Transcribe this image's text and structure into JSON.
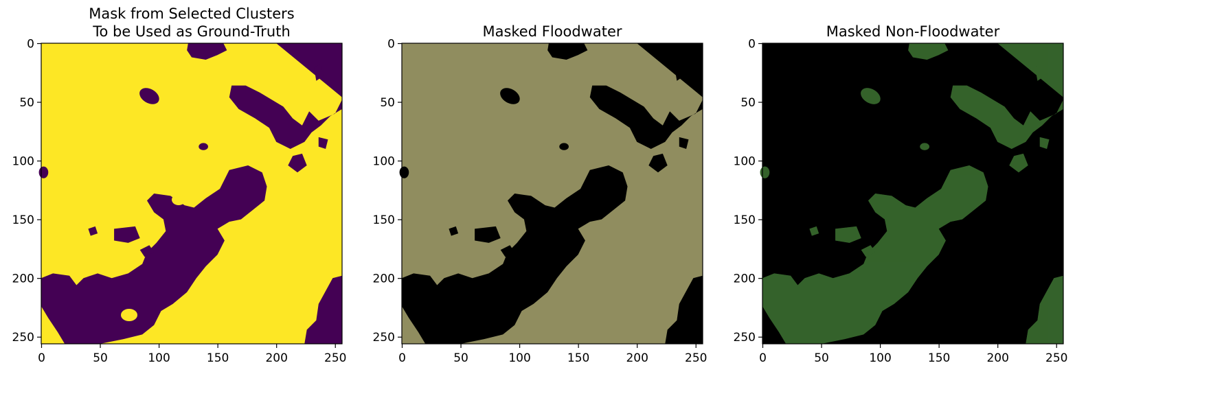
{
  "figure": {
    "panels": [
      {
        "id": "mask",
        "title_lines": [
          "Mask from Selected Clusters",
          "To be Used as Ground-Truth"
        ],
        "colors": {
          "background": "#fde725",
          "foreground": "#440154"
        },
        "x_ticks": [
          "0",
          "50",
          "100",
          "150",
          "200",
          "250"
        ],
        "y_ticks": [
          "0",
          "50",
          "100",
          "150",
          "200",
          "250"
        ]
      },
      {
        "id": "floodwater",
        "title_lines": [
          "Masked Floodwater"
        ],
        "colors": {
          "background": "#8c8b5c",
          "foreground": "#000000"
        },
        "x_ticks": [
          "0",
          "50",
          "100",
          "150",
          "200",
          "250"
        ],
        "y_ticks": [
          "0",
          "50",
          "100",
          "150",
          "200",
          "250"
        ]
      },
      {
        "id": "non-floodwater",
        "title_lines": [
          "Masked Non-Floodwater"
        ],
        "colors": {
          "background": "#000000",
          "foreground": "#3b6b30"
        },
        "x_ticks": [
          "0",
          "50",
          "100",
          "150",
          "200",
          "250"
        ],
        "y_ticks": [
          "0",
          "50",
          "100",
          "150",
          "200",
          "250"
        ]
      }
    ]
  }
}
